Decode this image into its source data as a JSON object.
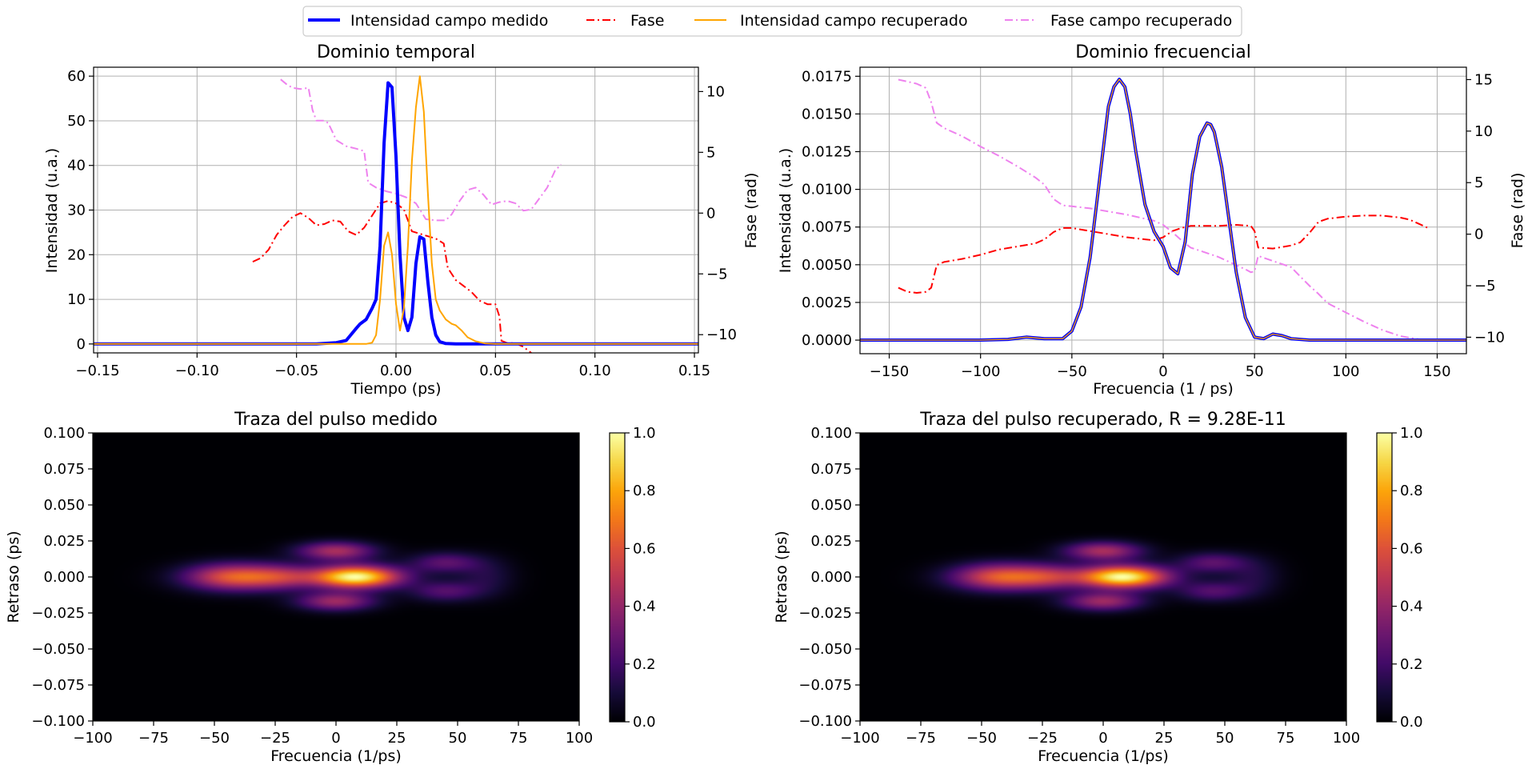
{
  "legend": {
    "items": [
      {
        "label": "Intensidad campo medido",
        "color": "#0000ff",
        "style": "solid-thick"
      },
      {
        "label": "Fase",
        "color": "#ff0000",
        "style": "dashdot"
      },
      {
        "label": "Intensidad campo recuperado",
        "color": "#ffa500",
        "style": "solid"
      },
      {
        "label": "Fase campo recuperado",
        "color": "#ee82ee",
        "style": "dashdot"
      }
    ]
  },
  "chart_data": [
    {
      "id": "temporal",
      "type": "line",
      "title": "Dominio temporal",
      "xlabel": "Tiempo (ps)",
      "ylabel": "Intensidad (u.a.)",
      "y2label": "Fase (rad)",
      "xlim": [
        -0.152,
        0.152
      ],
      "ylim": [
        -2,
        62
      ],
      "y2lim": [
        -11.5,
        12
      ],
      "xticks": [
        -0.15,
        -0.1,
        -0.05,
        0.0,
        0.05,
        0.1,
        0.15
      ],
      "xtick_labels": [
        "−0.15",
        "−0.10",
        "−0.05",
        "0.00",
        "0.05",
        "0.10",
        "0.15"
      ],
      "yticks": [
        0,
        10,
        20,
        30,
        40,
        50,
        60
      ],
      "ytick_labels": [
        "0",
        "10",
        "20",
        "30",
        "40",
        "50",
        "60"
      ],
      "y2ticks": [
        -10,
        -5,
        0,
        5,
        10
      ],
      "y2tick_labels": [
        "−10",
        "−5",
        "0",
        "5",
        "10"
      ],
      "grid": true,
      "series": [
        {
          "name": "Intensidad campo medido",
          "axis": "left",
          "color": "#0000ff",
          "width": 4,
          "dash": "",
          "x": [
            -0.152,
            -0.04,
            -0.03,
            -0.025,
            -0.02,
            -0.018,
            -0.015,
            -0.012,
            -0.01,
            -0.008,
            -0.006,
            -0.004,
            -0.002,
            0.0,
            0.002,
            0.004,
            0.006,
            0.008,
            0.01,
            0.012,
            0.014,
            0.016,
            0.018,
            0.02,
            0.022,
            0.025,
            0.03,
            0.035,
            0.152
          ],
          "y": [
            0,
            0,
            0.3,
            0.8,
            3.5,
            4.5,
            5.5,
            8,
            10,
            22,
            45,
            58.5,
            57.5,
            42,
            20,
            6,
            3,
            6,
            18,
            24,
            23.5,
            14,
            6,
            2,
            0.5,
            0.1,
            0,
            0,
            0
          ]
        },
        {
          "name": "Intensidad campo recuperado",
          "axis": "left",
          "color": "#ffa500",
          "width": 2,
          "dash": "",
          "x": [
            -0.152,
            -0.015,
            -0.012,
            -0.01,
            -0.008,
            -0.006,
            -0.004,
            -0.002,
            0.0,
            0.002,
            0.004,
            0.006,
            0.008,
            0.01,
            0.012,
            0.014,
            0.016,
            0.018,
            0.02,
            0.022,
            0.025,
            0.028,
            0.03,
            0.033,
            0.036,
            0.04,
            0.045,
            0.05,
            0.152
          ],
          "y": [
            0,
            0,
            0.3,
            2,
            10,
            22,
            25,
            20,
            9,
            3,
            8,
            22,
            41,
            53,
            60,
            52,
            34,
            18,
            10,
            7.5,
            5.5,
            4.5,
            4.2,
            3,
            1.5,
            0.6,
            0.1,
            0,
            0
          ]
        },
        {
          "name": "Fase",
          "axis": "right",
          "color": "#ff0000",
          "width": 2,
          "dash": "10,4,2,4",
          "x": [
            -0.072,
            -0.068,
            -0.064,
            -0.06,
            -0.056,
            -0.052,
            -0.048,
            -0.044,
            -0.04,
            -0.036,
            -0.032,
            -0.028,
            -0.024,
            -0.02,
            -0.016,
            -0.012,
            -0.008,
            -0.004,
            0.0,
            0.004,
            0.008,
            0.012,
            0.016,
            0.02,
            0.024,
            0.026,
            0.03,
            0.034,
            0.038,
            0.042,
            0.046,
            0.05,
            0.052,
            0.053,
            0.056,
            0.06,
            0.064,
            0.068
          ],
          "y": [
            -4,
            -3.7,
            -3,
            -1.8,
            -1,
            -0.3,
            0,
            -0.4,
            -1,
            -0.9,
            -0.6,
            -0.7,
            -1.5,
            -1.8,
            -1.2,
            -0.2,
            0.8,
            1,
            0.8,
            0.3,
            -1.5,
            -1.7,
            -1.9,
            -2.1,
            -2.5,
            -4.5,
            -5.5,
            -6,
            -6.5,
            -7.2,
            -7.5,
            -7.5,
            -8.5,
            -10.5,
            -10.7,
            -10.7,
            -11,
            -11.5
          ]
        },
        {
          "name": "Fase campo recuperado",
          "axis": "right",
          "color": "#ee82ee",
          "width": 2,
          "dash": "10,4,2,4",
          "x": [
            -0.058,
            -0.055,
            -0.052,
            -0.048,
            -0.044,
            -0.042,
            -0.04,
            -0.036,
            -0.034,
            -0.03,
            -0.025,
            -0.02,
            -0.016,
            -0.014,
            -0.01,
            -0.005,
            0.0,
            0.005,
            0.01,
            0.015,
            0.02,
            0.025,
            0.028,
            0.032,
            0.036,
            0.04,
            0.044,
            0.048,
            0.052,
            0.056,
            0.06,
            0.064,
            0.068,
            0.072,
            0.076,
            0.08,
            0.083
          ],
          "y": [
            11,
            10.6,
            10.3,
            10.2,
            10.3,
            8.5,
            7.6,
            7.6,
            7.4,
            6,
            5.5,
            5.3,
            5.1,
            2.5,
            2.1,
            1.8,
            1.6,
            1.3,
            0.8,
            -0.5,
            -0.6,
            -0.6,
            -0.1,
            1,
            1.9,
            2.1,
            1.5,
            0.7,
            0.9,
            1,
            0.8,
            0.2,
            0.3,
            1.2,
            2.1,
            3.5,
            4
          ]
        }
      ]
    },
    {
      "id": "frecuencial",
      "type": "line",
      "title": "Dominio frecuencial",
      "xlabel": "Frecuencia (1 / ps)",
      "ylabel": "Intensidad (u.a.)",
      "y2label": "Fase (rad)",
      "xlim": [
        -166,
        166
      ],
      "ylim": [
        -0.0009,
        0.0181
      ],
      "y2lim": [
        -11.6,
        16.2
      ],
      "xticks": [
        -150,
        -100,
        -50,
        0,
        50,
        100,
        150
      ],
      "xtick_labels": [
        "−150",
        "−100",
        "−50",
        "0",
        "50",
        "100",
        "150"
      ],
      "yticks": [
        0,
        0.0025,
        0.005,
        0.0075,
        0.01,
        0.0125,
        0.015,
        0.0175
      ],
      "ytick_labels": [
        "0.0000",
        "0.0025",
        "0.0050",
        "0.0075",
        "0.0100",
        "0.0125",
        "0.0150",
        "0.0175"
      ],
      "y2ticks": [
        -10,
        -5,
        0,
        5,
        10,
        15
      ],
      "y2tick_labels": [
        "−10",
        "−5",
        "0",
        "5",
        "10",
        "15"
      ],
      "grid": true,
      "series": [
        {
          "name": "Intensidad campo medido",
          "axis": "left",
          "color": "#0000ff",
          "width": 4,
          "dash": "",
          "x": [
            -166,
            -100,
            -85,
            -75,
            -65,
            -55,
            -50,
            -45,
            -40,
            -35,
            -30,
            -27,
            -24,
            -21,
            -18,
            -15,
            -10,
            -5,
            0,
            4,
            8,
            12,
            16,
            20,
            24,
            26,
            28,
            32,
            36,
            40,
            45,
            50,
            55,
            60,
            65,
            70,
            80,
            166
          ],
          "y": [
            0,
            0,
            5e-05,
            0.0002,
            0.0001,
            0.0001,
            0.0006,
            0.0022,
            0.0055,
            0.0105,
            0.0155,
            0.0168,
            0.0173,
            0.0168,
            0.015,
            0.0125,
            0.009,
            0.0072,
            0.0062,
            0.0048,
            0.0044,
            0.0065,
            0.011,
            0.0135,
            0.0144,
            0.0143,
            0.0138,
            0.0115,
            0.008,
            0.0045,
            0.0015,
            0.0002,
            0.0001,
            0.0004,
            0.0003,
            0.0001,
            0,
            0
          ]
        },
        {
          "name": "Intensidad campo recuperado",
          "axis": "left",
          "color": "#ffa500",
          "width": 1.3,
          "dash": "",
          "x": [
            -166,
            -100,
            -85,
            -75,
            -65,
            -55,
            -50,
            -45,
            -40,
            -35,
            -30,
            -27,
            -24,
            -21,
            -18,
            -15,
            -10,
            -5,
            0,
            4,
            8,
            12,
            16,
            20,
            24,
            26,
            28,
            32,
            36,
            40,
            45,
            50,
            55,
            60,
            65,
            70,
            80,
            166
          ],
          "y": [
            0,
            0,
            5e-05,
            0.0002,
            0.0001,
            0.0001,
            0.0006,
            0.0022,
            0.0055,
            0.0105,
            0.0155,
            0.0168,
            0.0173,
            0.0168,
            0.015,
            0.0125,
            0.009,
            0.0072,
            0.0062,
            0.0048,
            0.0044,
            0.0065,
            0.011,
            0.0135,
            0.0144,
            0.0143,
            0.0138,
            0.0115,
            0.008,
            0.0045,
            0.0015,
            0.0002,
            0.0001,
            0.0004,
            0.0003,
            0.0001,
            0,
            0
          ]
        },
        {
          "name": "Fase",
          "axis": "right",
          "color": "#ff0000",
          "width": 2,
          "dash": "10,4,2,4",
          "x": [
            -145,
            -140,
            -135,
            -130,
            -127,
            -124,
            -120,
            -110,
            -100,
            -90,
            -80,
            -70,
            -65,
            -60,
            -55,
            -50,
            -40,
            -30,
            -20,
            -10,
            -5,
            0,
            5,
            10,
            15,
            20,
            30,
            40,
            48,
            50,
            52,
            60,
            70,
            75,
            80,
            85,
            90,
            100,
            110,
            120,
            130,
            135,
            140,
            145
          ],
          "y": [
            -5.2,
            -5.6,
            -5.7,
            -5.6,
            -5.2,
            -3,
            -2.7,
            -2.4,
            -2,
            -1.5,
            -1.2,
            -0.9,
            -0.5,
            0.2,
            0.6,
            0.6,
            0.3,
            0,
            -0.3,
            -0.5,
            -0.6,
            -0.3,
            0.3,
            0.6,
            0.8,
            0.8,
            0.8,
            0.9,
            0.8,
            0.3,
            -1.3,
            -1.4,
            -1.1,
            -0.8,
            0.1,
            1.2,
            1.5,
            1.7,
            1.8,
            1.8,
            1.6,
            1.4,
            1,
            0.6
          ]
        },
        {
          "name": "Fase campo recuperado",
          "axis": "right",
          "color": "#ee82ee",
          "width": 2,
          "dash": "10,4,2,4",
          "x": [
            -145,
            -140,
            -135,
            -130,
            -127,
            -124,
            -120,
            -110,
            -100,
            -90,
            -80,
            -70,
            -65,
            -60,
            -55,
            -50,
            -40,
            -30,
            -20,
            -10,
            -5,
            0,
            5,
            10,
            15,
            20,
            30,
            40,
            46,
            48,
            50,
            52,
            55,
            60,
            70,
            75,
            80,
            85,
            90,
            100,
            110,
            120,
            130,
            140,
            145
          ],
          "y": [
            15,
            14.8,
            14.6,
            14.2,
            12.8,
            10.8,
            10.3,
            9.5,
            8.5,
            7.6,
            6.6,
            5.5,
            4.8,
            3.4,
            2.8,
            2.7,
            2.5,
            2.2,
            1.9,
            1.5,
            1.3,
            0.9,
            0.2,
            -0.6,
            -1.3,
            -1.6,
            -2.2,
            -3,
            -3.5,
            -3.7,
            -3.6,
            -2.1,
            -2.3,
            -2.6,
            -3.2,
            -4.1,
            -5,
            -5.8,
            -6.7,
            -7.6,
            -8.5,
            -9.3,
            -9.9,
            -10.2,
            -10.2
          ]
        }
      ]
    },
    {
      "id": "traza-medido",
      "type": "heatmap",
      "title": "Traza del pulso medido",
      "xlabel": "Frecuencia (1/ps)",
      "ylabel": "Retraso (ps)",
      "xlim": [
        -100,
        100
      ],
      "ylim": [
        -0.1,
        0.1
      ],
      "colormap": "inferno",
      "colorbar_range": [
        0,
        1
      ],
      "xticks": [
        -100,
        -75,
        -50,
        -25,
        0,
        25,
        50,
        75,
        100
      ],
      "xtick_labels": [
        "−100",
        "−75",
        "−50",
        "−25",
        "0",
        "25",
        "50",
        "75",
        "100"
      ],
      "yticks": [
        0.1,
        0.075,
        0.05,
        0.025,
        0,
        -0.025,
        -0.05,
        -0.075,
        -0.1
      ],
      "ytick_labels": [
        "0.100",
        "0.075",
        "0.050",
        "0.025",
        "0.000",
        "−0.025",
        "−0.050",
        "−0.075",
        "−0.100"
      ],
      "colorbar_ticks": [
        0,
        0.2,
        0.4,
        0.6,
        0.8,
        1.0
      ],
      "colorbar_tick_labels": [
        "0.0",
        "0.2",
        "0.4",
        "0.6",
        "0.8",
        "1.0"
      ],
      "blobs": [
        {
          "fx": 8,
          "tau": 0.0,
          "sx": 13,
          "sy": 0.0055,
          "a": 1.0
        },
        {
          "fx": -42,
          "tau": 0.0,
          "sx": 14,
          "sy": 0.0065,
          "a": 0.62
        },
        {
          "fx": -22,
          "tau": 0.0,
          "sx": 10,
          "sy": 0.006,
          "a": 0.3
        },
        {
          "fx": 0,
          "tau": 0.018,
          "sx": 11,
          "sy": 0.0045,
          "a": 0.45
        },
        {
          "fx": 0,
          "tau": -0.017,
          "sx": 11,
          "sy": 0.0045,
          "a": 0.42
        },
        {
          "fx": 45,
          "tau": 0.01,
          "sx": 10,
          "sy": 0.005,
          "a": 0.26
        },
        {
          "fx": 45,
          "tau": -0.01,
          "sx": 10,
          "sy": 0.005,
          "a": 0.24
        },
        {
          "fx": 62,
          "tau": 0.0,
          "sx": 8,
          "sy": 0.009,
          "a": 0.12
        }
      ]
    },
    {
      "id": "traza-recuperado",
      "type": "heatmap",
      "title": "Traza del pulso recuperado, R = 9.28E-11",
      "xlabel": "Frecuencia (1/ps)",
      "ylabel": "Retraso (ps)",
      "xlim": [
        -100,
        100
      ],
      "ylim": [
        -0.1,
        0.1
      ],
      "colormap": "inferno",
      "colorbar_range": [
        0,
        1
      ],
      "xticks": [
        -100,
        -75,
        -50,
        -25,
        0,
        25,
        50,
        75,
        100
      ],
      "xtick_labels": [
        "−100",
        "−75",
        "−50",
        "−25",
        "0",
        "25",
        "50",
        "75",
        "100"
      ],
      "yticks": [
        0.1,
        0.075,
        0.05,
        0.025,
        0,
        -0.025,
        -0.05,
        -0.075,
        -0.1
      ],
      "ytick_labels": [
        "0.100",
        "0.075",
        "0.050",
        "0.025",
        "0.000",
        "−0.025",
        "−0.050",
        "−0.075",
        "−0.100"
      ],
      "colorbar_ticks": [
        0,
        0.2,
        0.4,
        0.6,
        0.8,
        1.0
      ],
      "colorbar_tick_labels": [
        "0.0",
        "0.2",
        "0.4",
        "0.6",
        "0.8",
        "1.0"
      ],
      "blobs": [
        {
          "fx": 8,
          "tau": 0.0,
          "sx": 13,
          "sy": 0.0055,
          "a": 1.0
        },
        {
          "fx": -42,
          "tau": 0.0,
          "sx": 14,
          "sy": 0.0065,
          "a": 0.62
        },
        {
          "fx": -22,
          "tau": 0.0,
          "sx": 10,
          "sy": 0.006,
          "a": 0.3
        },
        {
          "fx": 0,
          "tau": 0.018,
          "sx": 11,
          "sy": 0.0045,
          "a": 0.45
        },
        {
          "fx": 0,
          "tau": -0.017,
          "sx": 11,
          "sy": 0.0045,
          "a": 0.42
        },
        {
          "fx": 45,
          "tau": 0.01,
          "sx": 10,
          "sy": 0.005,
          "a": 0.26
        },
        {
          "fx": 45,
          "tau": -0.01,
          "sx": 10,
          "sy": 0.005,
          "a": 0.24
        },
        {
          "fx": 62,
          "tau": 0.0,
          "sx": 8,
          "sy": 0.009,
          "a": 0.12
        }
      ]
    }
  ]
}
